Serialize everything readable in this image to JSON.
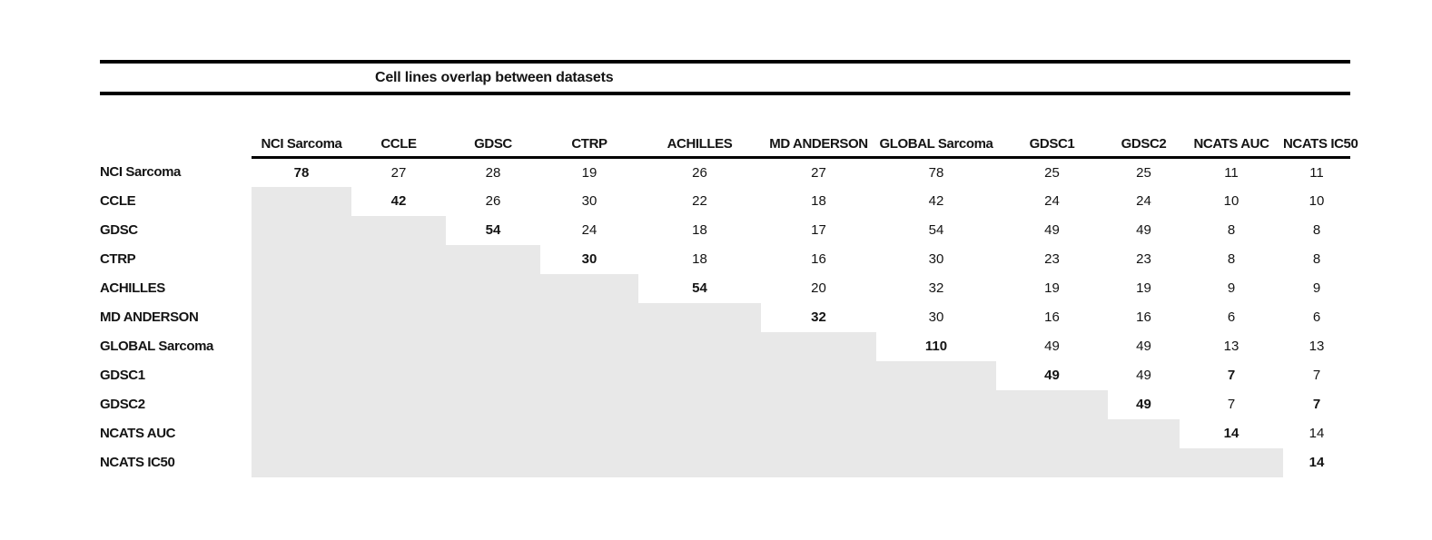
{
  "title": "Cell lines overlap between datasets",
  "chart_data": {
    "type": "table",
    "title": "Cell lines overlap between datasets",
    "description_layout": "upper-triangle overlap matrix; lower triangle shaded; diagonal values bold",
    "datasets": [
      "NCI Sarcoma",
      "CCLE",
      "GDSC",
      "CTRP",
      "ACHILLES",
      "MD ANDERSON",
      "GLOBAL Sarcoma",
      "GDSC1",
      "GDSC2",
      "NCATS AUC",
      "NCATS IC50"
    ],
    "rows": [
      {
        "label": "NCI Sarcoma",
        "values": [
          78,
          27,
          28,
          19,
          26,
          27,
          78,
          25,
          25,
          11,
          11
        ]
      },
      {
        "label": "CCLE",
        "values": [
          null,
          42,
          26,
          30,
          22,
          18,
          42,
          24,
          24,
          10,
          10
        ]
      },
      {
        "label": "GDSC",
        "values": [
          null,
          null,
          54,
          24,
          18,
          17,
          54,
          49,
          49,
          8,
          8
        ]
      },
      {
        "label": "CTRP",
        "values": [
          null,
          null,
          null,
          30,
          18,
          16,
          30,
          23,
          23,
          8,
          8
        ]
      },
      {
        "label": "ACHILLES",
        "values": [
          null,
          null,
          null,
          null,
          54,
          20,
          32,
          19,
          19,
          9,
          9
        ]
      },
      {
        "label": "MD ANDERSON",
        "values": [
          null,
          null,
          null,
          null,
          null,
          32,
          30,
          16,
          16,
          6,
          6
        ]
      },
      {
        "label": "GLOBAL Sarcoma",
        "values": [
          null,
          null,
          null,
          null,
          null,
          null,
          110,
          49,
          49,
          13,
          13
        ]
      },
      {
        "label": "GDSC1",
        "values": [
          null,
          null,
          null,
          null,
          null,
          null,
          null,
          49,
          49,
          7,
          7
        ]
      },
      {
        "label": "GDSC2",
        "values": [
          null,
          null,
          null,
          null,
          null,
          null,
          null,
          null,
          49,
          7,
          7
        ]
      },
      {
        "label": "NCATS AUC",
        "values": [
          null,
          null,
          null,
          null,
          null,
          null,
          null,
          null,
          null,
          14,
          14
        ]
      },
      {
        "label": "NCATS IC50",
        "values": [
          null,
          null,
          null,
          null,
          null,
          null,
          null,
          null,
          null,
          null,
          14
        ]
      }
    ],
    "bold_cells": [
      [
        0,
        0
      ],
      [
        1,
        1
      ],
      [
        2,
        2
      ],
      [
        3,
        3
      ],
      [
        4,
        4
      ],
      [
        5,
        5
      ],
      [
        6,
        6
      ],
      [
        7,
        7
      ],
      [
        7,
        9
      ],
      [
        8,
        8
      ],
      [
        8,
        10
      ],
      [
        9,
        9
      ],
      [
        10,
        10
      ]
    ],
    "colors": {
      "shaded_cell": "#e8e8e8",
      "rule_line": "#000000",
      "text": "#141414",
      "background": "#ffffff"
    }
  }
}
